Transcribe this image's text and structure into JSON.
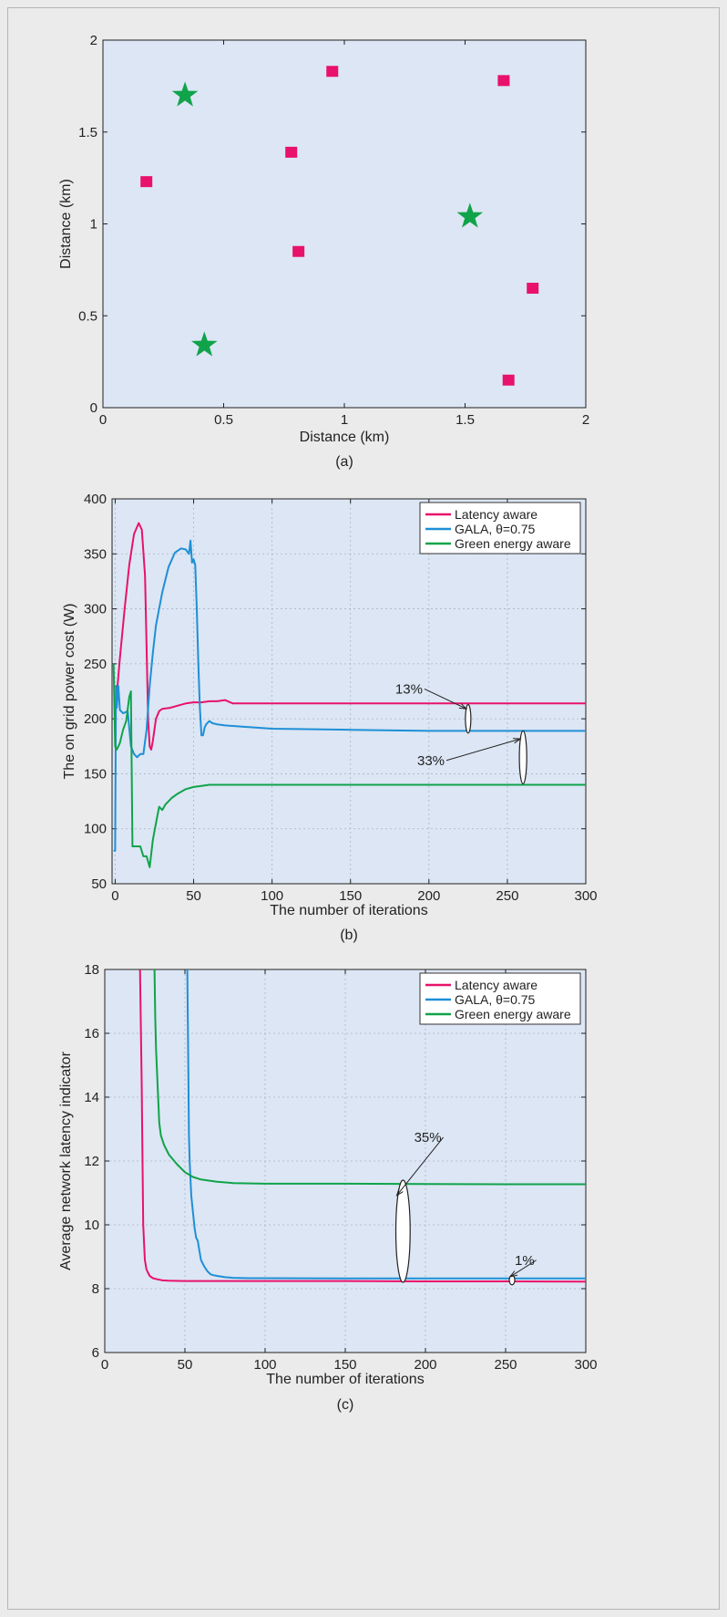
{
  "chart_data": [
    {
      "type": "scatter",
      "caption": "(a)",
      "xlabel": "Distance (km)",
      "ylabel": "Distance (km)",
      "xlim": [
        0,
        2
      ],
      "ylim": [
        0,
        2
      ],
      "xticks": [
        0,
        0.5,
        1,
        1.5,
        2
      ],
      "yticks": [
        0,
        0.5,
        1,
        1.5,
        2
      ],
      "xtick_labels": [
        "0",
        "0.5",
        "1",
        "1.5",
        "2"
      ],
      "ytick_labels": [
        "0",
        "0.5",
        "1",
        "1.5",
        "2"
      ],
      "grid": false,
      "series": [
        {
          "marker": "star",
          "color": "#10a34a",
          "points": [
            [
              0.34,
              1.7
            ],
            [
              1.52,
              1.04
            ],
            [
              0.42,
              0.34
            ]
          ]
        },
        {
          "marker": "square",
          "color": "#e8126a",
          "points": [
            [
              0.18,
              1.23
            ],
            [
              0.95,
              1.83
            ],
            [
              0.78,
              1.39
            ],
            [
              0.81,
              0.85
            ],
            [
              1.66,
              1.78
            ],
            [
              1.78,
              0.65
            ],
            [
              1.68,
              0.15
            ]
          ]
        }
      ]
    },
    {
      "type": "line",
      "caption": "(b)",
      "xlabel": "The number of iterations",
      "ylabel": "The on grid power cost (W)",
      "xlim": [
        -2,
        300
      ],
      "ylim": [
        50,
        400
      ],
      "xticks": [
        0,
        50,
        100,
        150,
        200,
        250,
        300
      ],
      "yticks": [
        50,
        100,
        150,
        200,
        250,
        300,
        350,
        400
      ],
      "xtick_labels": [
        "0",
        "50",
        "100",
        "150",
        "200",
        "250",
        "300"
      ],
      "ytick_labels": [
        "50",
        "100",
        "150",
        "200",
        "250",
        "300",
        "350",
        "400"
      ],
      "grid": true,
      "legend_position": "top-right",
      "series": [
        {
          "name": "Latency aware",
          "color": "#e8126a",
          "x": [
            0,
            3,
            6,
            9,
            12,
            15,
            17,
            19,
            21,
            22,
            23,
            24,
            26,
            28,
            30,
            35,
            40,
            45,
            50,
            55,
            60,
            65,
            70,
            75,
            80,
            100,
            150,
            200,
            250,
            300
          ],
          "y": [
            205,
            255,
            300,
            340,
            368,
            378,
            372,
            330,
            200,
            175,
            172,
            180,
            200,
            207,
            209,
            210,
            212,
            214,
            215,
            215,
            216,
            216,
            217,
            214,
            214,
            214,
            214,
            214,
            214,
            214
          ]
        },
        {
          "name": "GALA, θ=0.75",
          "color": "#1f8fd6",
          "x": [
            -1,
            0,
            0.5,
            1,
            2,
            3,
            5,
            8,
            10,
            12,
            14,
            16,
            18,
            20,
            22,
            24,
            26,
            30,
            34,
            38,
            42,
            45,
            47,
            48,
            49,
            50,
            51,
            52,
            53,
            54,
            55,
            56,
            57,
            58,
            60,
            62,
            65,
            70,
            80,
            100,
            150,
            200,
            250,
            300
          ],
          "y": [
            80,
            80,
            230,
            210,
            230,
            208,
            205,
            207,
            175,
            168,
            165,
            168,
            168,
            190,
            230,
            260,
            285,
            315,
            338,
            351,
            355,
            354,
            350,
            362,
            342,
            345,
            340,
            300,
            250,
            210,
            185,
            185,
            192,
            195,
            198,
            196,
            195,
            194,
            193,
            191,
            190,
            189,
            189,
            189
          ]
        },
        {
          "name": "Green energy aware",
          "color": "#10a34a",
          "x": [
            -1,
            0,
            1,
            2,
            3,
            5,
            7,
            9,
            10,
            11,
            12,
            14,
            16,
            18,
            20,
            22,
            24,
            26,
            28,
            30,
            32,
            34,
            36,
            40,
            45,
            50,
            55,
            60,
            70,
            80,
            100,
            150,
            200,
            250,
            300
          ],
          "y": [
            250,
            175,
            172,
            175,
            178,
            190,
            198,
            220,
            225,
            84,
            84,
            84,
            84,
            75,
            75,
            65,
            90,
            105,
            120,
            117,
            122,
            125,
            128,
            132,
            136,
            138,
            139,
            140,
            140,
            140,
            140,
            140,
            140,
            140,
            140
          ]
        }
      ],
      "annotations": [
        {
          "text": "13%",
          "x": 196,
          "y": 223,
          "ellipse_center": [
            225,
            200
          ],
          "ellipse_ry_units": 13
        },
        {
          "text": "33%",
          "x": 210,
          "y": 158,
          "ellipse_center": [
            260,
            165
          ],
          "ellipse_ry_units": 24
        }
      ]
    },
    {
      "type": "line",
      "caption": "(c)",
      "xlabel": "The number of iterations",
      "ylabel": "Average network latency indicator",
      "xlim": [
        0,
        300
      ],
      "ylim": [
        6,
        18
      ],
      "xticks": [
        0,
        50,
        100,
        150,
        200,
        250,
        300
      ],
      "yticks": [
        6,
        8,
        10,
        12,
        14,
        16,
        18
      ],
      "xtick_labels": [
        "0",
        "50",
        "100",
        "150",
        "200",
        "250",
        "300"
      ],
      "ytick_labels": [
        "6",
        "8",
        "10",
        "12",
        "14",
        "16",
        "18"
      ],
      "grid": true,
      "legend_position": "top-right",
      "series": [
        {
          "name": "Latency aware",
          "color": "#e8126a",
          "x": [
            22,
            23,
            24,
            25,
            26,
            27,
            28,
            30,
            33,
            36,
            40,
            50,
            70,
            100,
            150,
            200,
            250,
            300
          ],
          "y": [
            18,
            14.5,
            10.0,
            8.9,
            8.6,
            8.5,
            8.4,
            8.33,
            8.29,
            8.26,
            8.25,
            8.24,
            8.24,
            8.24,
            8.24,
            8.23,
            8.23,
            8.22
          ]
        },
        {
          "name": "GALA, θ=0.75",
          "color": "#1f8fd6",
          "x": [
            51.5,
            52,
            52.5,
            53,
            54,
            55,
            56,
            57,
            58,
            59,
            60,
            62,
            64,
            66,
            68,
            70,
            75,
            80,
            90,
            100,
            150,
            200,
            250,
            300
          ],
          "y": [
            18,
            15.5,
            12.8,
            11.9,
            10.9,
            10.4,
            9.9,
            9.6,
            9.5,
            9.2,
            8.9,
            8.7,
            8.55,
            8.45,
            8.42,
            8.4,
            8.36,
            8.34,
            8.33,
            8.33,
            8.32,
            8.32,
            8.32,
            8.32
          ]
        },
        {
          "name": "Green energy aware",
          "color": "#10a34a",
          "x": [
            31,
            31.5,
            32,
            33,
            34,
            35,
            37,
            40,
            45,
            50,
            55,
            60,
            70,
            80,
            100,
            150,
            200,
            250,
            300
          ],
          "y": [
            18,
            16.5,
            15.5,
            14.3,
            13.2,
            12.8,
            12.5,
            12.2,
            11.9,
            11.65,
            11.5,
            11.42,
            11.35,
            11.31,
            11.29,
            11.29,
            11.28,
            11.27,
            11.27
          ]
        }
      ],
      "annotations": [
        {
          "text": "35%",
          "x": 210,
          "y": 12.6,
          "ellipse_center": [
            186,
            9.8
          ],
          "ellipse_ry_units": 1.6
        },
        {
          "text": "1%",
          "x": 268,
          "y": 8.75,
          "ellipse_center": [
            254,
            8.27
          ],
          "ellipse_ry_units": 0.15
        }
      ]
    }
  ]
}
